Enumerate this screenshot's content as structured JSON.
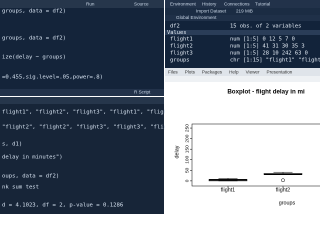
{
  "editor": {
    "toolbar": [
      "Run",
      "Source"
    ],
    "lines": [
      "groups, data = df2)",
      "groups, data = df2)",
      "ize(delay ~ groups)",
      "=0.455,sig.level=.05,power=.8)"
    ],
    "status": "R Script"
  },
  "console": {
    "lines": [
      "flight1\", \"flight2\", \"flight3\", \"flight1\", \"flight1\",",
      "\"flight2\", \"flight2\", \"flight3\", \"flight3\", \"flight3\",",
      "s, d1)",
      "delay in minutes\")",
      "oups, data = df2)",
      "nk sum test",
      "d = 4.1023, df = 2, p-value = 0.1286"
    ]
  },
  "environment": {
    "tabs": [
      "Environment",
      "History",
      "Connections",
      "Tutorial"
    ],
    "toolbar": [
      "Import Dataset",
      "219 MiB"
    ],
    "scope": "Global Environment",
    "data_row": {
      "name": "df2",
      "value": "15 obs. of 2 variables"
    },
    "values_header": "Values",
    "values": [
      {
        "name": "flight1",
        "value": "num [1:5] 0 12 5 7 0"
      },
      {
        "name": "flight2",
        "value": "num [1:5] 41 31 30 35 3"
      },
      {
        "name": "flight3",
        "value": "num [1:5] 28 10 242 63 0"
      },
      {
        "name": "groups",
        "value": "chr [1:15] \"flight1\" \"flight"
      }
    ]
  },
  "plots_pane": {
    "tabs": [
      "Files",
      "Plots",
      "Packages",
      "Help",
      "Viewer",
      "Presentation"
    ]
  },
  "chart_data": {
    "type": "box",
    "title": "Boxplot - flight delay in mi",
    "x_label": "groups",
    "y_label": "delay",
    "categories": [
      "flight1",
      "flight2"
    ],
    "boxes": [
      {
        "min": 0,
        "q1": 0,
        "median": 5,
        "q3": 7,
        "max": 12,
        "outliers": []
      },
      {
        "min": 30,
        "q1": 30,
        "median": 31,
        "q3": 35,
        "max": 41,
        "outliers": [
          3
        ]
      }
    ],
    "ylim": [
      -10,
      255
    ],
    "yticks": [
      0,
      50,
      100,
      150,
      200,
      250
    ]
  }
}
